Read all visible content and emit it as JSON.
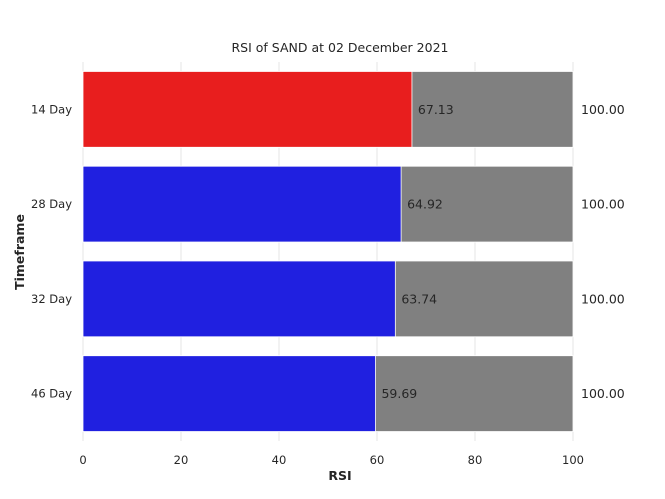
{
  "chart_data": {
    "type": "bar",
    "orientation": "horizontal",
    "title": "RSI of SAND at 02 December 2021",
    "xlabel": "RSI",
    "ylabel": "Timeframe",
    "xlim": [
      0,
      100
    ],
    "xticks": [
      "0",
      "20",
      "40",
      "60",
      "80",
      "100"
    ],
    "grid": true,
    "categories": [
      "14 Day",
      "28 Day",
      "32 Day",
      "46 Day"
    ],
    "series": [
      {
        "values": [
          100,
          100,
          100,
          100
        ],
        "labels": [
          "100.00",
          "100.00",
          "100.00",
          "100.00"
        ],
        "color": "#808080"
      },
      {
        "values": [
          67.13,
          64.92,
          63.74,
          59.69
        ],
        "labels": [
          "67.13",
          "64.92",
          "63.74",
          "59.69"
        ],
        "colors": [
          "#e81e1e",
          "#2020e0",
          "#2020e0",
          "#2020e0"
        ]
      }
    ]
  }
}
